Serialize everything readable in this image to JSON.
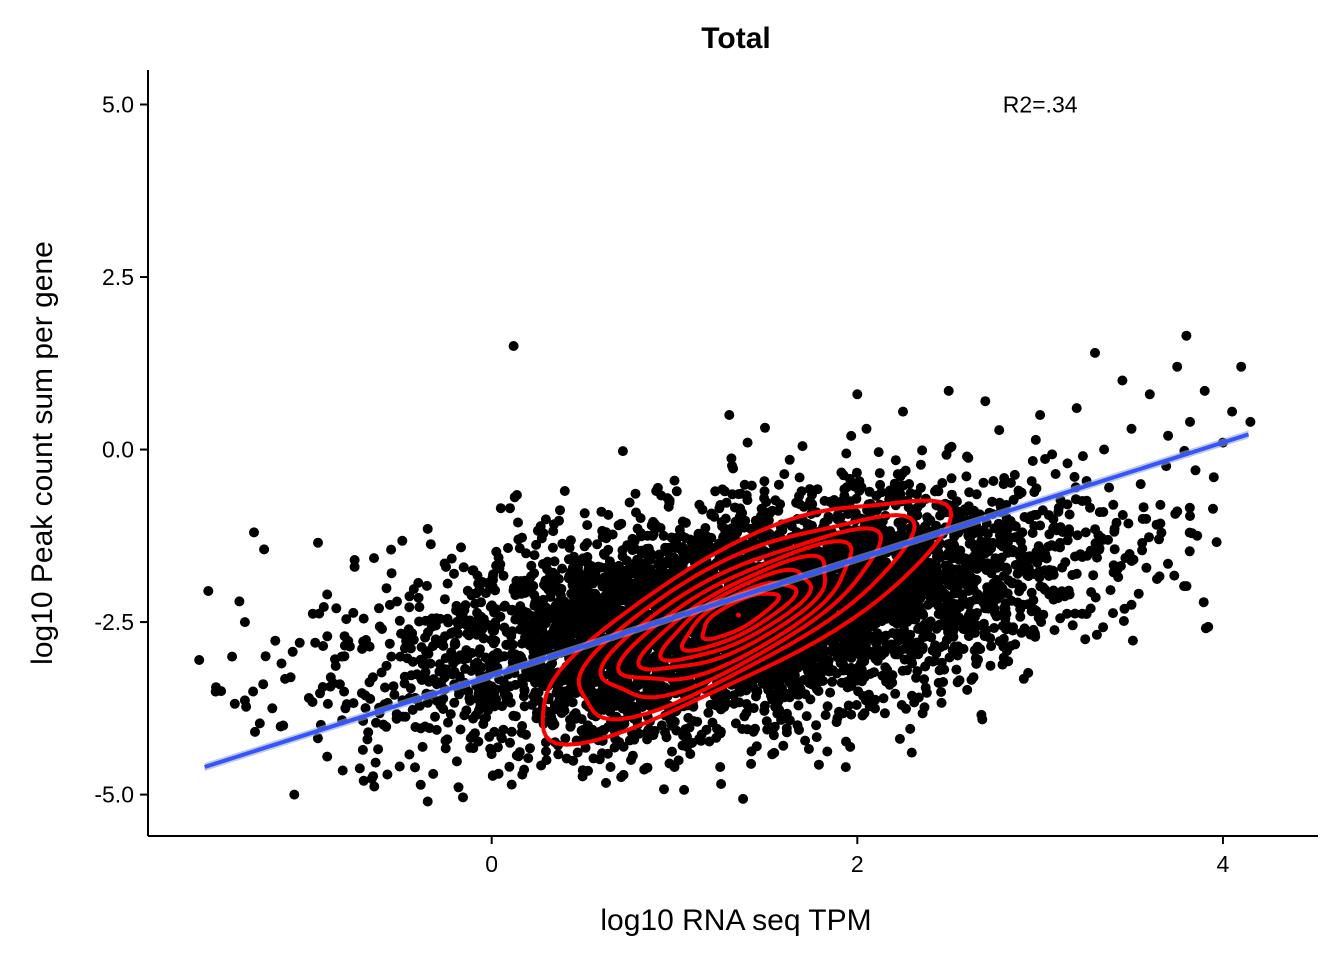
{
  "chart_data": {
    "type": "scatter",
    "title": "Total",
    "xlabel": "log10 RNA seq TPM",
    "ylabel": "log10 Peak count sum per gene",
    "xlim": [
      -1.88,
      4.52
    ],
    "ylim": [
      -5.6,
      5.5
    ],
    "xticks": [
      0,
      2,
      4
    ],
    "xtick_labels": [
      "0",
      "2",
      "4"
    ],
    "yticks": [
      -5.0,
      -2.5,
      0.0,
      2.5,
      5.0
    ],
    "ytick_labels": [
      "-5.0",
      "-2.5",
      "0.0",
      "2.5",
      "5.0"
    ],
    "grid": false,
    "annotation": {
      "text": "R2=.34",
      "x": 3.0,
      "y": 5.0
    },
    "regression_line": {
      "x": [
        -1.57,
        4.14
      ],
      "y": [
        -4.6,
        0.22
      ],
      "color": "#3355ff"
    },
    "density_contours": {
      "color": "#ff0000",
      "center": {
        "x": 1.35,
        "y": -2.4
      },
      "levels": [
        {
          "rx": 1.25,
          "ry": 0.53,
          "angle_deg": 28
        },
        {
          "rx": 1.02,
          "ry": 0.45,
          "angle_deg": 28
        },
        {
          "rx": 0.84,
          "ry": 0.38,
          "angle_deg": 28
        },
        {
          "rx": 0.7,
          "ry": 0.32,
          "angle_deg": 28
        },
        {
          "rx": 0.57,
          "ry": 0.26,
          "angle_deg": 28
        },
        {
          "rx": 0.45,
          "ry": 0.21,
          "angle_deg": 28
        },
        {
          "rx": 0.34,
          "ry": 0.16,
          "angle_deg": 28
        },
        {
          "rx": 0.23,
          "ry": 0.11,
          "angle_deg": 28
        }
      ]
    },
    "points": {
      "color": "#000000",
      "outliers": [
        [
          -1.55,
          -2.05
        ],
        [
          -1.6,
          -3.05
        ],
        [
          -1.48,
          -3.5
        ],
        [
          -1.42,
          -3.0
        ],
        [
          -1.38,
          -2.2
        ],
        [
          -1.35,
          -2.5
        ],
        [
          -1.3,
          -1.2
        ],
        [
          -1.25,
          -3.4
        ],
        [
          -1.2,
          -3.75
        ],
        [
          -1.15,
          -3.1
        ],
        [
          -1.1,
          -3.3
        ],
        [
          -1.05,
          -2.8
        ],
        [
          -1.0,
          -3.6
        ],
        [
          -0.95,
          -1.35
        ],
        [
          -0.9,
          -4.45
        ],
        [
          -0.9,
          -2.1
        ],
        [
          -0.88,
          -3.3
        ],
        [
          -0.85,
          -2.3
        ],
        [
          -0.82,
          -3.0
        ],
        [
          -0.8,
          -3.75
        ],
        [
          -0.75,
          -1.7
        ],
        [
          -0.7,
          -2.45
        ],
        [
          -0.68,
          -4.2
        ],
        [
          -0.65,
          -3.3
        ],
        [
          -0.6,
          -2.6
        ],
        [
          -0.55,
          -1.45
        ],
        [
          -0.52,
          -3.9
        ],
        [
          -0.5,
          -3.0
        ],
        [
          -0.45,
          -3.6
        ],
        [
          -0.4,
          -2.15
        ],
        [
          -0.35,
          -1.15
        ],
        [
          -0.32,
          -4.7
        ],
        [
          -0.3,
          -3.4
        ],
        [
          -0.25,
          -1.7
        ],
        [
          -0.2,
          -2.8
        ],
        [
          -0.15,
          -3.85
        ],
        [
          -0.1,
          -1.75
        ],
        [
          -0.05,
          -2.6
        ],
        [
          0.0,
          -3.2
        ],
        [
          0.05,
          -0.85
        ],
        [
          0.1,
          -4.25
        ],
        [
          0.12,
          1.5
        ],
        [
          0.18,
          -1.9
        ],
        [
          0.22,
          -3.7
        ],
        [
          -0.7,
          -4.8
        ],
        [
          -0.35,
          -5.1
        ],
        [
          -1.08,
          -5.0
        ],
        [
          -0.75,
          -1.6
        ],
        [
          0.1,
          -0.85
        ],
        [
          0.3,
          -4.5
        ],
        [
          0.4,
          -0.6
        ],
        [
          0.6,
          -0.9
        ],
        [
          0.9,
          -0.6
        ],
        [
          1.3,
          0.5
        ],
        [
          1.4,
          0.1
        ],
        [
          2.0,
          0.8
        ],
        [
          2.25,
          0.55
        ],
        [
          2.5,
          0.85
        ],
        [
          2.6,
          -0.1
        ],
        [
          2.7,
          0.7
        ],
        [
          2.8,
          -0.5
        ],
        [
          2.9,
          -1.7
        ],
        [
          3.0,
          -1.1
        ],
        [
          3.0,
          0.5
        ],
        [
          3.1,
          -0.9
        ],
        [
          3.15,
          -0.2
        ],
        [
          3.2,
          0.6
        ],
        [
          3.25,
          -1.2
        ],
        [
          3.3,
          1.4
        ],
        [
          3.35,
          0.0
        ],
        [
          3.4,
          -0.8
        ],
        [
          3.45,
          1.0
        ],
        [
          3.5,
          -2.25
        ],
        [
          3.5,
          0.3
        ],
        [
          3.55,
          -0.5
        ],
        [
          3.6,
          0.8
        ],
        [
          3.65,
          -1.3
        ],
        [
          3.7,
          0.2
        ],
        [
          3.75,
          1.2
        ],
        [
          3.8,
          1.65
        ],
        [
          3.82,
          0.4
        ],
        [
          3.85,
          -0.3
        ],
        [
          3.9,
          0.85
        ],
        [
          3.95,
          -0.4
        ],
        [
          4.0,
          0.1
        ],
        [
          4.05,
          0.55
        ],
        [
          4.1,
          1.2
        ],
        [
          4.15,
          0.4
        ],
        [
          2.45,
          -3.2
        ],
        [
          3.05,
          -2.1
        ],
        [
          3.2,
          -1.8
        ],
        [
          2.7,
          -2.3
        ],
        [
          2.3,
          -2.8
        ],
        [
          1.9,
          -3.8
        ],
        [
          0.65,
          -4.6
        ],
        [
          1.0,
          -4.6
        ],
        [
          1.25,
          -4.6
        ],
        [
          1.45,
          -4.3
        ],
        [
          0.85,
          -4.2
        ],
        [
          0.5,
          -4.1
        ],
        [
          1.0,
          -0.45
        ],
        [
          1.7,
          0.05
        ],
        [
          2.05,
          0.3
        ]
      ]
    }
  }
}
